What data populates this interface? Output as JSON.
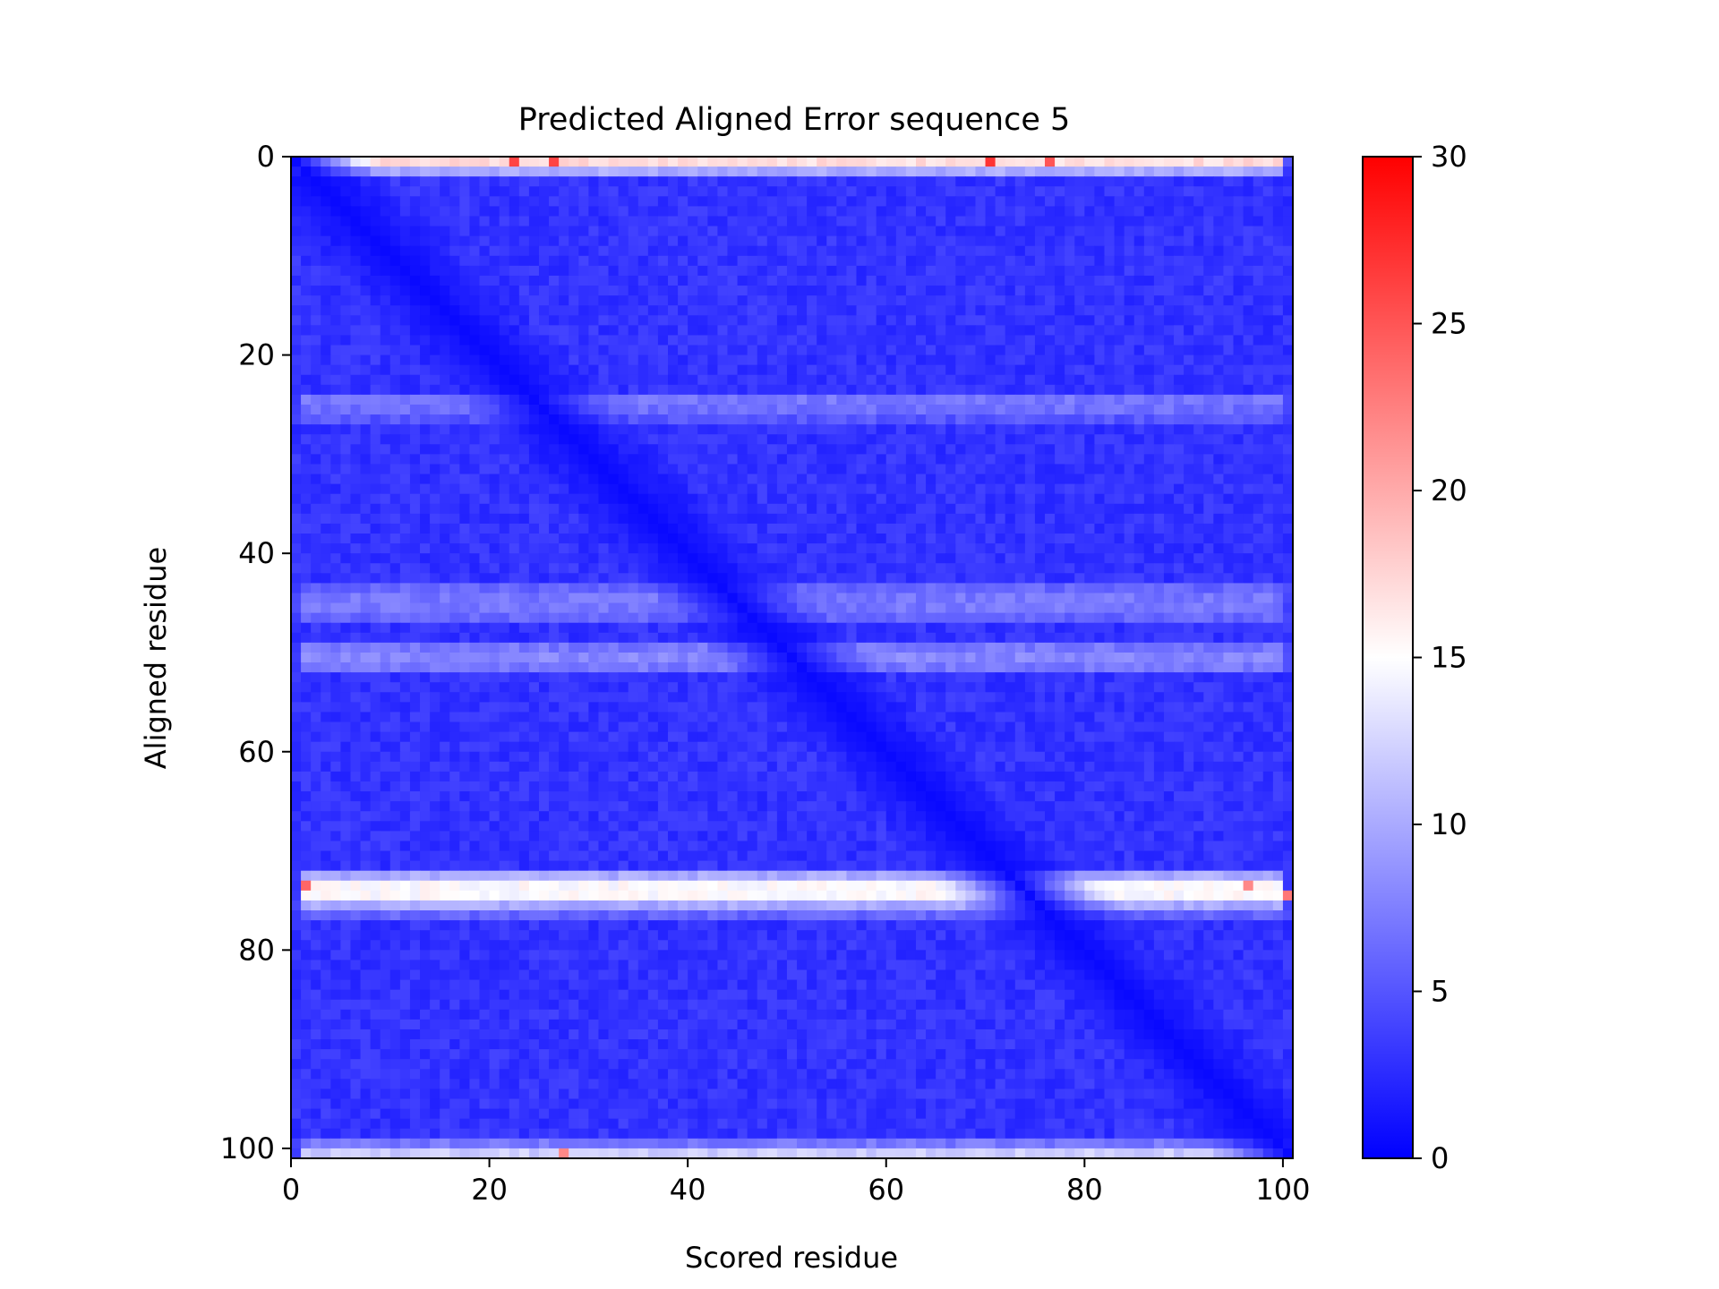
{
  "chart_data": {
    "type": "heatmap",
    "title": "Predicted Aligned Error sequence 5",
    "xlabel": "Scored residue",
    "ylabel": "Aligned residue",
    "n_residues": 101,
    "xlim": [
      0,
      101
    ],
    "ylim": [
      101,
      0
    ],
    "xticks": [
      0,
      20,
      40,
      60,
      80,
      100
    ],
    "yticks": [
      0,
      20,
      40,
      60,
      80,
      100
    ],
    "colorbar": {
      "vmin": 0,
      "vmax": 30,
      "ticks": [
        0,
        5,
        10,
        15,
        20,
        25,
        30
      ],
      "colors": [
        "#0000ff",
        "#ffffff",
        "#ff0000"
      ]
    },
    "diagonal_error": 0.5,
    "base_error": 3.0,
    "row_error_offsets": [
      {
        "row": 0,
        "value": 14
      },
      {
        "row": 1,
        "value": 7
      },
      {
        "row": 24,
        "value": 4
      },
      {
        "row": 25,
        "value": 3.5
      },
      {
        "row": 26,
        "value": 2
      },
      {
        "row": 43,
        "value": 3
      },
      {
        "row": 44,
        "value": 4
      },
      {
        "row": 45,
        "value": 4
      },
      {
        "row": 46,
        "value": 3
      },
      {
        "row": 49,
        "value": 4
      },
      {
        "row": 50,
        "value": 5
      },
      {
        "row": 51,
        "value": 4
      },
      {
        "row": 72,
        "value": 7
      },
      {
        "row": 73,
        "value": 12
      },
      {
        "row": 74,
        "value": 12
      },
      {
        "row": 75,
        "value": 7
      },
      {
        "row": 76,
        "value": 3
      },
      {
        "row": 99,
        "value": 4
      },
      {
        "row": 100,
        "value": 9
      }
    ],
    "notable_cells": [
      {
        "row": 0,
        "col": 22,
        "value": 26
      },
      {
        "row": 0,
        "col": 26,
        "value": 26
      },
      {
        "row": 0,
        "col": 70,
        "value": 27
      },
      {
        "row": 0,
        "col": 76,
        "value": 25
      },
      {
        "row": 73,
        "col": 1,
        "value": 24
      },
      {
        "row": 74,
        "col": 100,
        "value": 23
      },
      {
        "row": 73,
        "col": 96,
        "value": 22
      },
      {
        "row": 100,
        "col": 27,
        "value": 22
      }
    ]
  }
}
